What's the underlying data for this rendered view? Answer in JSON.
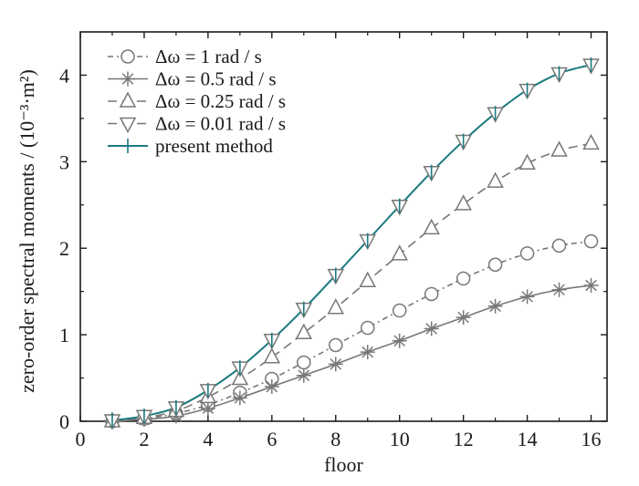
{
  "chart_data": {
    "type": "line",
    "xlabel": "floor",
    "ylabel": "zero-order spectral moments / (10⁻³·m²)",
    "xlim": [
      0,
      16.5
    ],
    "ylim": [
      0,
      4.5
    ],
    "xticks": [
      0,
      2,
      4,
      6,
      8,
      10,
      12,
      14,
      16
    ],
    "yticks": [
      0,
      1,
      2,
      3,
      4
    ],
    "xtick_labels": [
      "0",
      "2",
      "4",
      "6",
      "8",
      "10",
      "12",
      "14",
      "16"
    ],
    "ytick_labels": [
      "0",
      "1",
      "2",
      "3",
      "4"
    ],
    "grid": false,
    "legend_position": "top-left",
    "x": [
      1,
      2,
      3,
      4,
      5,
      6,
      7,
      8,
      9,
      10,
      11,
      12,
      13,
      14,
      15,
      16
    ],
    "series": [
      {
        "name": "Δω = 1 rad / s",
        "color": "#777777",
        "dash": "dash-dot",
        "marker": "circle",
        "values": [
          0.0,
          0.03,
          0.09,
          0.19,
          0.33,
          0.49,
          0.68,
          0.88,
          1.08,
          1.28,
          1.47,
          1.65,
          1.81,
          1.94,
          2.03,
          2.08
        ]
      },
      {
        "name": "Δω = 0.5 rad / s",
        "color": "#777777",
        "dash": "solid",
        "marker": "asterisk",
        "values": [
          0.0,
          0.02,
          0.06,
          0.15,
          0.27,
          0.4,
          0.53,
          0.66,
          0.8,
          0.93,
          1.07,
          1.2,
          1.33,
          1.44,
          1.52,
          1.57
        ]
      },
      {
        "name": "Δω = 0.25 rad / s",
        "color": "#777777",
        "dash": "dashed",
        "marker": "triangle-up",
        "values": [
          0.0,
          0.04,
          0.12,
          0.28,
          0.49,
          0.74,
          1.02,
          1.31,
          1.62,
          1.93,
          2.23,
          2.51,
          2.77,
          2.98,
          3.13,
          3.21
        ]
      },
      {
        "name": "Δω = 0.01 rad / s",
        "color": "#777777",
        "dash": "dashed",
        "marker": "triangle-down",
        "values": [
          0.01,
          0.06,
          0.16,
          0.36,
          0.62,
          0.94,
          1.3,
          1.69,
          2.09,
          2.49,
          2.88,
          3.24,
          3.56,
          3.83,
          4.02,
          4.12
        ]
      },
      {
        "name": "present method",
        "color": "#1a7a80",
        "dash": "solid",
        "marker": "plus",
        "values": [
          0.01,
          0.06,
          0.16,
          0.36,
          0.62,
          0.94,
          1.3,
          1.69,
          2.09,
          2.49,
          2.88,
          3.24,
          3.56,
          3.83,
          4.02,
          4.12
        ]
      }
    ]
  }
}
